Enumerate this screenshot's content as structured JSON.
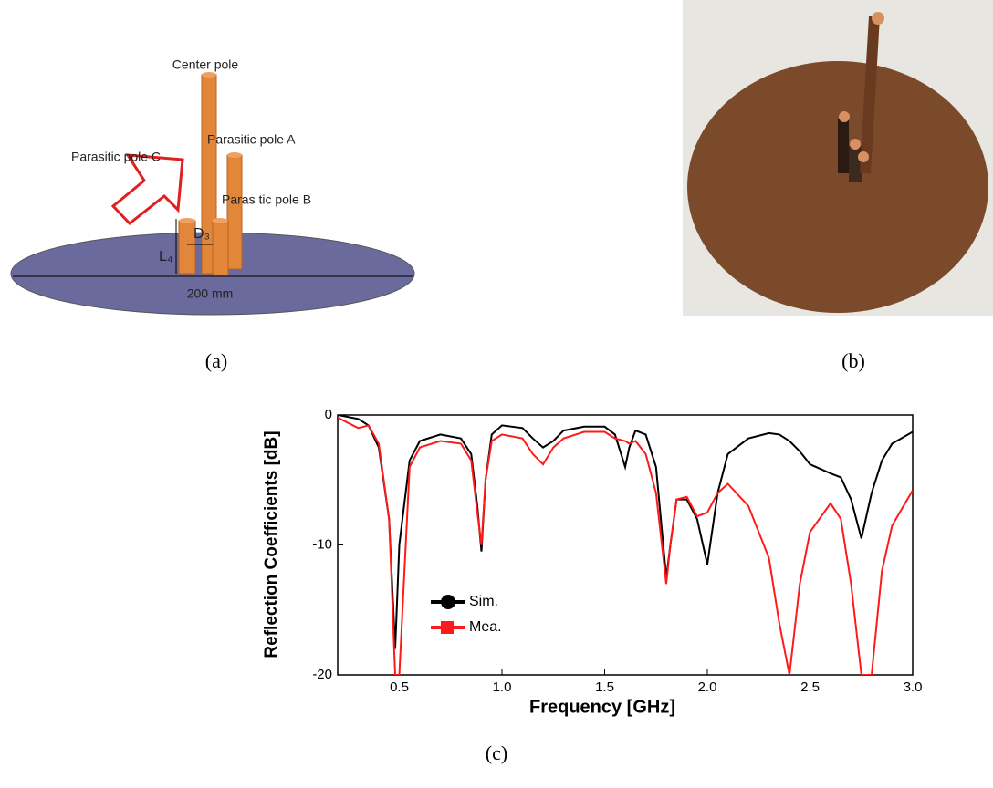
{
  "figure": {
    "panel_a": {
      "center_pole": "Center pole",
      "pole_a": "Parasitic pole A",
      "pole_c": "Parasitic pole C",
      "pole_b": "Paras tic pole B",
      "d3": "D₃",
      "l4": "L₄",
      "diameter": "200 mm"
    },
    "captions": [
      "(a)",
      "(b)",
      "(c)"
    ]
  },
  "chart_data": {
    "type": "line",
    "x_label": "Frequency [GHz]",
    "y_label": "Reflection Coefficients [dB]",
    "x": [
      0.2,
      0.3,
      0.35,
      0.4,
      0.45,
      0.48,
      0.5,
      0.55,
      0.6,
      0.7,
      0.8,
      0.85,
      0.88,
      0.9,
      0.92,
      0.95,
      1.0,
      1.1,
      1.15,
      1.2,
      1.25,
      1.3,
      1.4,
      1.5,
      1.55,
      1.6,
      1.62,
      1.65,
      1.7,
      1.75,
      1.8,
      1.82,
      1.85,
      1.9,
      1.95,
      2.0,
      2.05,
      2.1,
      2.2,
      2.3,
      2.35,
      2.4,
      2.45,
      2.5,
      2.6,
      2.65,
      2.7,
      2.75,
      2.8,
      2.85,
      2.9,
      3.0
    ],
    "series": [
      {
        "name": "Sim.",
        "color": "#000000",
        "values": [
          0,
          -0.3,
          -0.8,
          -2.5,
          -8,
          -18,
          -10,
          -3.5,
          -2,
          -1.5,
          -1.8,
          -3,
          -7,
          -10.5,
          -5,
          -1.5,
          -0.8,
          -1,
          -1.8,
          -2.5,
          -2,
          -1.2,
          -0.9,
          -0.9,
          -1.5,
          -4,
          -2.5,
          -1.2,
          -1.5,
          -4,
          -12.5,
          -10,
          -6.5,
          -6.5,
          -8,
          -11.5,
          -6,
          -3,
          -1.8,
          -1.4,
          -1.5,
          -2,
          -2.8,
          -3.8,
          -4.5,
          -4.8,
          -6.5,
          -9.5,
          -6,
          -3.5,
          -2.2,
          -1.3
        ]
      },
      {
        "name": "Mea.",
        "color": "#ff1a1a",
        "values": [
          -0.2,
          -1,
          -0.8,
          -2.2,
          -8,
          -20,
          -20,
          -4,
          -2.5,
          -2,
          -2.2,
          -3.5,
          -7.5,
          -10,
          -5,
          -2,
          -1.5,
          -1.8,
          -3,
          -3.8,
          -2.5,
          -1.8,
          -1.3,
          -1.3,
          -1.8,
          -2,
          -2.2,
          -2,
          -3,
          -6,
          -13,
          -10,
          -6.5,
          -6.3,
          -7.8,
          -7.5,
          -6,
          -5.3,
          -7,
          -11,
          -16,
          -20,
          -13,
          -9,
          -6.8,
          -8,
          -13,
          -20,
          -20,
          -12,
          -8.5,
          -5.8
        ]
      }
    ],
    "xlim": [
      0.2,
      3.0
    ],
    "ylim": [
      -20,
      0
    ],
    "xticks": [
      0.5,
      {
        "value": 1.0,
        "label": "1.0"
      },
      1.5,
      {
        "value": 2.0,
        "label": "2.0"
      },
      2.5,
      {
        "value": 3.0,
        "label": "3.0"
      }
    ],
    "yticks": [
      0,
      -10,
      -20
    ]
  }
}
